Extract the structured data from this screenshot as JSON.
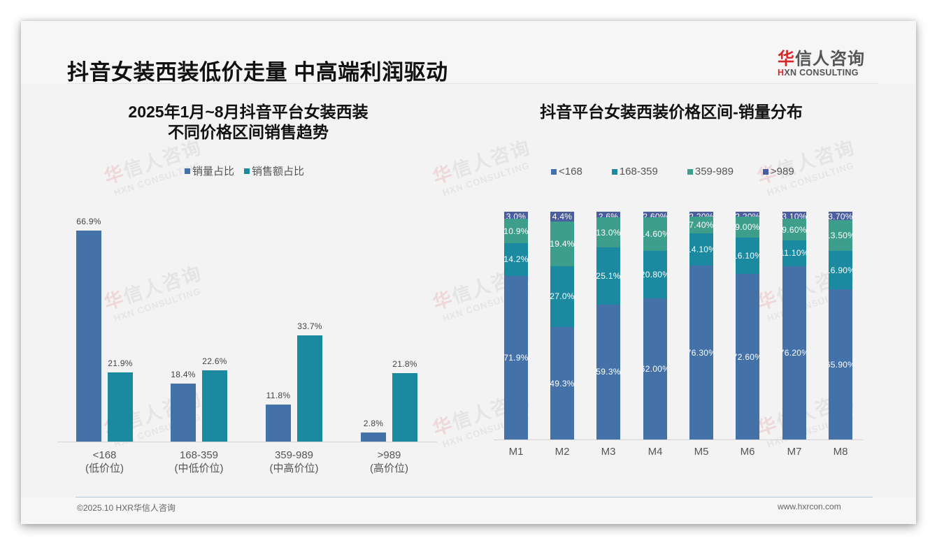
{
  "page": {
    "title": "抖音女装西装低价走量 中高端利润驱动",
    "logo": {
      "cn_brand_first": "华",
      "cn_brand_rest": "信人咨询",
      "en_first": "H",
      "en_rest": "XN CONSULTING"
    },
    "watermark": {
      "cn_first": "华",
      "cn_rest": "信人咨询",
      "en": "HXN CONSULTING"
    },
    "footer": {
      "left": "©2025.10 HXR华信人咨询",
      "right": "www.hxrcon.com"
    }
  },
  "colors": {
    "blue": "#4472a8",
    "teal": "#1b8aa0",
    "green": "#3e9e8c",
    "indigo": "#4a5d9e",
    "background": "#f3f3f3"
  },
  "chart_data": [
    {
      "type": "bar",
      "title": "2025年1月~8月抖音平台女装西装 不同价格区间销售趋势",
      "title_lines": [
        "2025年1月~8月抖音平台女装西装",
        "不同价格区间销售趋势"
      ],
      "categories": [
        "<168",
        "168-359",
        "359-989",
        ">989"
      ],
      "category_sublabels": [
        "(低价位)",
        "(中低价位)",
        "(中高价位)",
        "(高价位)"
      ],
      "series": [
        {
          "name": "销量占比",
          "values": [
            66.9,
            18.4,
            11.8,
            2.8
          ],
          "labels": [
            "66.9%",
            "18.4%",
            "11.8%",
            "2.8%"
          ],
          "color": "#4472a8"
        },
        {
          "name": "销售额占比",
          "values": [
            21.9,
            22.6,
            33.7,
            21.8
          ],
          "labels": [
            "21.9%",
            "22.6%",
            "33.7%",
            "21.8%"
          ],
          "color": "#1b8aa0"
        }
      ],
      "xlabel": "",
      "ylabel": "",
      "unit": "%",
      "legend_position": "top",
      "grid": false
    },
    {
      "type": "bar",
      "stacked": true,
      "title": "抖音平台女装西装价格区间-销量分布",
      "categories": [
        "M1",
        "M2",
        "M3",
        "M4",
        "M5",
        "M6",
        "M7",
        "M8"
      ],
      "series": [
        {
          "name": "<168",
          "values": [
            71.9,
            49.3,
            59.3,
            62.0,
            76.3,
            72.6,
            76.2,
            65.9
          ],
          "labels": [
            "71.9%",
            "49.3%",
            "59.3%",
            "62.00%",
            "76.30%",
            "72.60%",
            "76.20%",
            "65.90%"
          ],
          "color": "#4472a8"
        },
        {
          "name": "168-359",
          "values": [
            14.2,
            27.0,
            25.1,
            20.8,
            14.1,
            16.1,
            11.1,
            16.9
          ],
          "labels": [
            "14.2%",
            "27.0%",
            "25.1%",
            "20.80%",
            "14.10%",
            "16.10%",
            "11.10%",
            "16.90%"
          ],
          "color": "#1b8aa0"
        },
        {
          "name": "359-989",
          "values": [
            10.9,
            19.4,
            13.0,
            14.6,
            7.4,
            9.0,
            9.6,
            13.5
          ],
          "labels": [
            "10.9%",
            "19.4%",
            "13.0%",
            "14.60%",
            "7.40%",
            "9.00%",
            "9.60%",
            "13.50%"
          ],
          "color": "#3e9e8c"
        },
        {
          "name": ">989",
          "values": [
            3.0,
            4.4,
            2.6,
            2.6,
            2.2,
            2.2,
            3.1,
            3.7
          ],
          "labels": [
            "3.0%",
            "4.4%",
            "2.6%",
            "2.60%",
            "2.20%",
            "2.20%",
            "3.10%",
            "3.70%"
          ],
          "color": "#4a5d9e"
        }
      ],
      "xlabel": "",
      "ylabel": "",
      "ylim": [
        0,
        100
      ],
      "unit": "%",
      "legend_position": "top",
      "grid": false
    }
  ]
}
